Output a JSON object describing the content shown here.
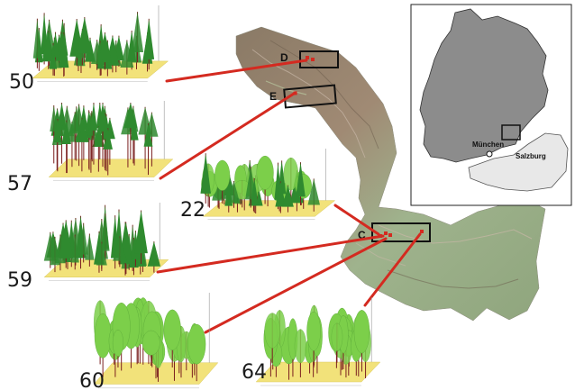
{
  "plots": [
    {
      "id": "plot-50",
      "number": "50",
      "forest": "dense-conifer"
    },
    {
      "id": "plot-57",
      "number": "57",
      "forest": "tall-conifer"
    },
    {
      "id": "plot-22",
      "number": "22",
      "forest": "mixed"
    },
    {
      "id": "plot-59",
      "number": "59",
      "forest": "dense-conifer"
    },
    {
      "id": "plot-60",
      "number": "60",
      "forest": "deciduous"
    },
    {
      "id": "plot-64",
      "number": "64",
      "forest": "deciduous"
    }
  ],
  "study_boxes": [
    {
      "id": "box-d",
      "label": "D"
    },
    {
      "id": "box-e",
      "label": "E"
    },
    {
      "id": "box-c",
      "label": "C"
    }
  ],
  "inset_map": {
    "cities": [
      "München",
      "Salzburg"
    ],
    "colors": {
      "germany": "#8c8c8c",
      "austria": "#e8e8e8",
      "frame": "#222222"
    }
  },
  "colors": {
    "connector": "#d42a20",
    "ground": "#f2e27a",
    "conifer": "#2f8a2f",
    "deciduous": "#7ccf4a",
    "trunk": "#7a1f1f",
    "relief_low": "#9bb78a",
    "relief_high": "#7a5a4a"
  }
}
